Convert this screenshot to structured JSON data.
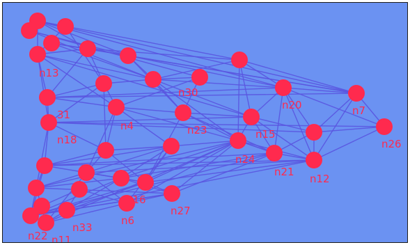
{
  "graph": {
    "background_color": "#6b92f2",
    "edge_color": "#5a55e0",
    "node_color": "#ff2a4e",
    "label_color": "#ff2a4e",
    "nodes": [
      {
        "id": "top1",
        "label": ""
      },
      {
        "id": "top2",
        "label": ""
      },
      {
        "id": "top3",
        "label": ""
      },
      {
        "id": "top4",
        "label": ""
      },
      {
        "id": "n13",
        "label": "n13"
      },
      {
        "id": "a1",
        "label": ""
      },
      {
        "id": "a2",
        "label": ""
      },
      {
        "id": "a3",
        "label": ""
      },
      {
        "id": "a4",
        "label": ""
      },
      {
        "id": "b1",
        "label": ""
      },
      {
        "id": "n31",
        "label": "31"
      },
      {
        "id": "n18",
        "label": "n18"
      },
      {
        "id": "n4",
        "label": "n4"
      },
      {
        "id": "n23",
        "label": "n23"
      },
      {
        "id": "n15",
        "label": "n15"
      },
      {
        "id": "n20",
        "label": "n20"
      },
      {
        "id": "n7",
        "label": "n7"
      },
      {
        "id": "n26",
        "label": "n26"
      },
      {
        "id": "r1",
        "label": ""
      },
      {
        "id": "n21",
        "label": "n21"
      },
      {
        "id": "n12",
        "label": "n12"
      },
      {
        "id": "n24",
        "label": "n24"
      },
      {
        "id": "m1",
        "label": ""
      },
      {
        "id": "m2",
        "label": ""
      },
      {
        "id": "n6",
        "label": "n6"
      },
      {
        "id": "n27",
        "label": "n27"
      },
      {
        "id": "n16",
        "label": "n16"
      },
      {
        "id": "c1",
        "label": ""
      },
      {
        "id": "c2",
        "label": ""
      },
      {
        "id": "c3",
        "label": ""
      },
      {
        "id": "c4",
        "label": ""
      },
      {
        "id": "n22",
        "label": "n22"
      },
      {
        "id": "n11",
        "label": "n11"
      },
      {
        "id": "n33",
        "label": "n33"
      },
      {
        "id": "c5",
        "label": ""
      },
      {
        "id": "c6",
        "label": ""
      },
      {
        "id": "n30",
        "label": "n30"
      }
    ],
    "edges": [
      [
        "top1",
        "top2"
      ],
      [
        "top1",
        "top3"
      ],
      [
        "top1",
        "n13"
      ],
      [
        "top1",
        "a1"
      ],
      [
        "top1",
        "a2"
      ],
      [
        "top1",
        "n20"
      ],
      [
        "top1",
        "n7"
      ],
      [
        "top1",
        "a3"
      ],
      [
        "top2",
        "a2"
      ],
      [
        "top2",
        "a4"
      ],
      [
        "top2",
        "n30"
      ],
      [
        "top3",
        "n13"
      ],
      [
        "top3",
        "b1"
      ],
      [
        "top4",
        "a1"
      ],
      [
        "top4",
        "n7"
      ],
      [
        "top4",
        "n30"
      ],
      [
        "n13",
        "a1"
      ],
      [
        "n13",
        "n31"
      ],
      [
        "n13",
        "n18"
      ],
      [
        "n13",
        "n4"
      ],
      [
        "n13",
        "n30"
      ],
      [
        "n13",
        "n15"
      ],
      [
        "a1",
        "a2"
      ],
      [
        "a1",
        "a3"
      ],
      [
        "a1",
        "n31"
      ],
      [
        "a1",
        "b1"
      ],
      [
        "a2",
        "n20"
      ],
      [
        "a2",
        "n7"
      ],
      [
        "a2",
        "n30"
      ],
      [
        "a2",
        "n23"
      ],
      [
        "a3",
        "n20"
      ],
      [
        "a3",
        "n7"
      ],
      [
        "a3",
        "n15"
      ],
      [
        "a3",
        "n24"
      ],
      [
        "a3",
        "n30"
      ],
      [
        "a4",
        "n4"
      ],
      [
        "a4",
        "n23"
      ],
      [
        "a4",
        "n30"
      ],
      [
        "b1",
        "n4"
      ],
      [
        "b1",
        "n31"
      ],
      [
        "b1",
        "n18"
      ],
      [
        "b1",
        "m1"
      ],
      [
        "b1",
        "n30"
      ],
      [
        "n30",
        "n20"
      ],
      [
        "n30",
        "n15"
      ],
      [
        "n30",
        "n23"
      ],
      [
        "n30",
        "n24"
      ],
      [
        "n31",
        "n18"
      ],
      [
        "n31",
        "n20"
      ],
      [
        "n31",
        "n7"
      ],
      [
        "n31",
        "n4"
      ],
      [
        "n18",
        "c1"
      ],
      [
        "n18",
        "c2"
      ],
      [
        "n18",
        "r1"
      ],
      [
        "n18",
        "n26"
      ],
      [
        "n18",
        "n15"
      ],
      [
        "n18",
        "m1"
      ],
      [
        "n4",
        "m1"
      ],
      [
        "n4",
        "n23"
      ],
      [
        "n4",
        "n24"
      ],
      [
        "n4",
        "m2"
      ],
      [
        "n4",
        "c3"
      ],
      [
        "n23",
        "n24"
      ],
      [
        "n23",
        "n16"
      ],
      [
        "n23",
        "n15"
      ],
      [
        "n23",
        "n21"
      ],
      [
        "n15",
        "n20"
      ],
      [
        "n15",
        "r1"
      ],
      [
        "n15",
        "n24"
      ],
      [
        "n15",
        "n21"
      ],
      [
        "n15",
        "n12"
      ],
      [
        "n20",
        "n7"
      ],
      [
        "n20",
        "r1"
      ],
      [
        "n20",
        "n21"
      ],
      [
        "n20",
        "n12"
      ],
      [
        "n20",
        "n26"
      ],
      [
        "n7",
        "n26"
      ],
      [
        "n7",
        "r1"
      ],
      [
        "n7",
        "n12"
      ],
      [
        "r1",
        "n26"
      ],
      [
        "r1",
        "n21"
      ],
      [
        "r1",
        "n12"
      ],
      [
        "n21",
        "n12"
      ],
      [
        "n21",
        "n24"
      ],
      [
        "n12",
        "n26"
      ],
      [
        "n24",
        "n27"
      ],
      [
        "n24",
        "n16"
      ],
      [
        "n24",
        "m2"
      ],
      [
        "n24",
        "n12"
      ],
      [
        "n24",
        "n21"
      ],
      [
        "n24",
        "n6"
      ],
      [
        "n24",
        "c4"
      ],
      [
        "m1",
        "c1"
      ],
      [
        "m1",
        "m2"
      ],
      [
        "m1",
        "n16"
      ],
      [
        "m1",
        "c3"
      ],
      [
        "m2",
        "n16"
      ],
      [
        "m2",
        "n6"
      ],
      [
        "m2",
        "c4"
      ],
      [
        "m2",
        "c3"
      ],
      [
        "c1",
        "c2"
      ],
      [
        "c1",
        "c3"
      ],
      [
        "c1",
        "n22"
      ],
      [
        "c1",
        "n21"
      ],
      [
        "c1",
        "n12"
      ],
      [
        "c1",
        "m2"
      ],
      [
        "c2",
        "c3"
      ],
      [
        "c2",
        "c4"
      ],
      [
        "c2",
        "n22"
      ],
      [
        "c2",
        "n11"
      ],
      [
        "c2",
        "n27"
      ],
      [
        "c2",
        "n24"
      ],
      [
        "c3",
        "c4"
      ],
      [
        "c3",
        "n6"
      ],
      [
        "c3",
        "n16"
      ],
      [
        "c3",
        "n11"
      ],
      [
        "c3",
        "n12"
      ],
      [
        "c4",
        "n16"
      ],
      [
        "c4",
        "n27"
      ],
      [
        "c4",
        "n22"
      ],
      [
        "c4",
        "n33"
      ],
      [
        "c4",
        "n21"
      ],
      [
        "n22",
        "n11"
      ],
      [
        "n22",
        "n33"
      ],
      [
        "n22",
        "n16"
      ],
      [
        "n22",
        "n12"
      ],
      [
        "n22",
        "n27"
      ],
      [
        "n22",
        "n21"
      ],
      [
        "n22",
        "c5"
      ],
      [
        "n11",
        "n33"
      ],
      [
        "n11",
        "n6"
      ],
      [
        "n11",
        "n24"
      ],
      [
        "n33",
        "n27"
      ],
      [
        "n33",
        "n16"
      ],
      [
        "n33",
        "c6"
      ],
      [
        "n16",
        "n27"
      ],
      [
        "n16",
        "n12"
      ],
      [
        "n6",
        "n27"
      ],
      [
        "n27",
        "n21"
      ],
      [
        "c5",
        "c6"
      ],
      [
        "c6",
        "n6"
      ]
    ]
  }
}
